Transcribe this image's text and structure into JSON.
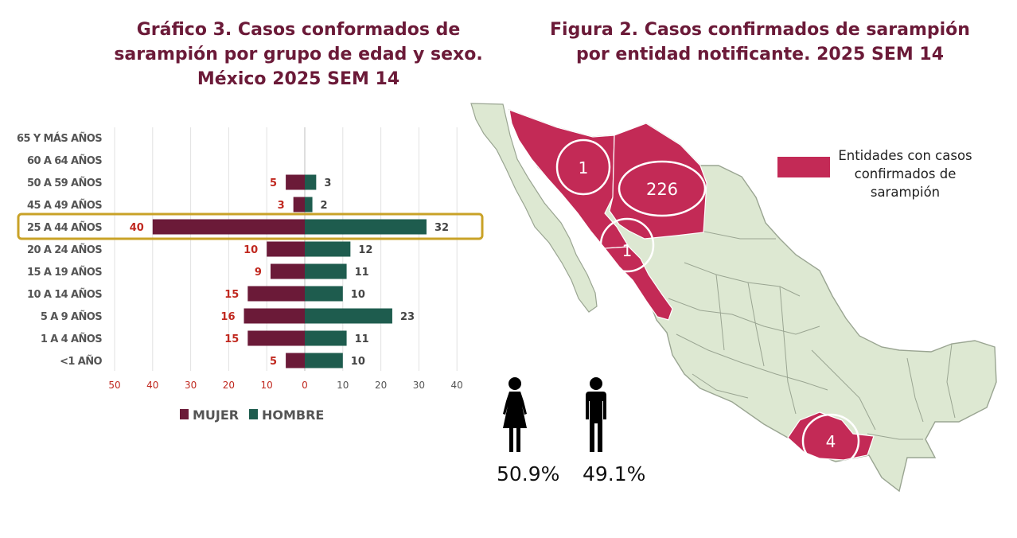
{
  "chart_title": "Gráfico 3. Casos conformados de sarampión por grupo de edad y sexo. México 2025 SEM 14",
  "map_title": "Figura 2. Casos confirmados de sarampión por entidad notificante. 2025 SEM 14",
  "chart_data": {
    "type": "bar",
    "orientation": "horizontal-population-pyramid",
    "categories": [
      "65 Y MÁS AÑOS",
      "60 A 64 AÑOS",
      "50 A 59 AÑOS",
      "45 A 49 AÑOS",
      "25 A 44 AÑOS",
      "20 A 24 AÑOS",
      "15 A 19 AÑOS",
      "10 A 14 AÑOS",
      "5 A 9 AÑOS",
      "1 A 4 AÑOS",
      "<1 AÑO"
    ],
    "series": [
      {
        "name": "MUJER",
        "color": "#6b1a38",
        "values": [
          null,
          null,
          5,
          3,
          40,
          10,
          9,
          15,
          16,
          15,
          5
        ]
      },
      {
        "name": "HOMBRE",
        "color": "#1e5c4e",
        "values": [
          null,
          null,
          3,
          2,
          32,
          12,
          11,
          10,
          23,
          11,
          10
        ]
      }
    ],
    "xticks_left": [
      "50",
      "40",
      "30",
      "20",
      "10",
      "0"
    ],
    "xticks_right": [
      "10",
      "20",
      "30",
      "40"
    ],
    "xlim": [
      -50,
      40
    ],
    "highlighted_category": "25 A 44 AÑOS",
    "grid": true,
    "legend_position": "bottom"
  },
  "sex_percentages": {
    "female": "50.9%",
    "male": "49.1%"
  },
  "map": {
    "legend_label": "Entidades con casos confirmados de sarampión",
    "highlight_color": "#c32a56",
    "base_color": "#dde8d2",
    "case_counts": [
      {
        "state": "Sonora",
        "value": "1"
      },
      {
        "state": "Chihuahua",
        "value": "226"
      },
      {
        "state": "Sinaloa",
        "value": "1"
      },
      {
        "state": "Oaxaca",
        "value": "4"
      }
    ]
  },
  "icons": {
    "female": "woman-icon",
    "male": "man-icon"
  }
}
